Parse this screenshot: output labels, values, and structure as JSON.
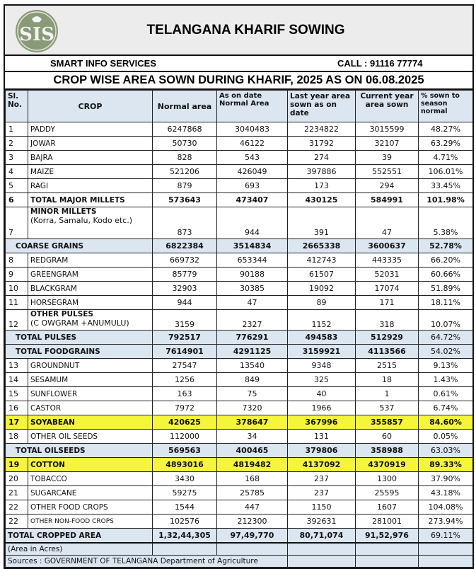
{
  "header": {
    "title": "TELANGANA KHARIF SOWING",
    "org": "SMART INFO SERVICES",
    "call": "CALL : 91116 77774",
    "subtitle": "CROP WISE AREA SOWN DURING KHARIF, 2025 AS ON  06.08.2025",
    "logo_text": "SIS"
  },
  "columns": [
    "Sl. No.",
    "CROP",
    "Normal area",
    "As on date Normal Area",
    "Last year area sown as on date",
    "Current year area sown",
    "% sown to season normal"
  ],
  "colors": {
    "header_bg": "#dce6f1",
    "highlight": "#f5f53a",
    "title_bg": "#ececec",
    "logo": "#8a9a78"
  },
  "rows": [
    {
      "sl": "1",
      "crop": "PADDY",
      "normal": "6247868",
      "asOn": "3040483",
      "lastYear": "2234822",
      "current": "3015599",
      "pct": "48.27%",
      "type": "normal"
    },
    {
      "sl": "2",
      "crop": "JOWAR",
      "normal": "50730",
      "asOn": "46122",
      "lastYear": "31792",
      "current": "32107",
      "pct": "63.29%",
      "type": "normal"
    },
    {
      "sl": "3",
      "crop": "BAJRA",
      "normal": "828",
      "asOn": "543",
      "lastYear": "274",
      "current": "39",
      "pct": "4.71%",
      "type": "normal"
    },
    {
      "sl": "4",
      "crop": "MAIZE",
      "normal": "521206",
      "asOn": "426049",
      "lastYear": "397886",
      "current": "552551",
      "pct": "106.01%",
      "type": "normal"
    },
    {
      "sl": "5",
      "crop": "RAGI",
      "normal": "879",
      "asOn": "693",
      "lastYear": "173",
      "current": "294",
      "pct": "33.45%",
      "type": "normal"
    },
    {
      "sl": "6",
      "crop": "TOTAL MAJOR MILLETS",
      "normal": "573643",
      "asOn": "473407",
      "lastYear": "430125",
      "current": "584991",
      "pct": "101.98%",
      "type": "bold"
    },
    {
      "sl": "7",
      "crop": "MINOR MILLETS",
      "sub": "(Korra, Samalu, Kodo etc.)",
      "normal": "873",
      "asOn": "944",
      "lastYear": "391",
      "current": "47",
      "pct": "5.38%",
      "type": "tall"
    },
    {
      "sl": "",
      "crop": "COARSE GRAINS",
      "normal": "6822384",
      "asOn": "3514834",
      "lastYear": "2665338",
      "current": "3600637",
      "pct": "52.78%",
      "type": "summary",
      "pctBold": true
    },
    {
      "sl": "8",
      "crop": "REDGRAM",
      "normal": "669732",
      "asOn": "653344",
      "lastYear": "412743",
      "current": "443335",
      "pct": "66.20%",
      "type": "normal"
    },
    {
      "sl": "9",
      "crop": "GREENGRAM",
      "normal": "85779",
      "asOn": "90188",
      "lastYear": "61507",
      "current": "52031",
      "pct": "60.66%",
      "type": "normal"
    },
    {
      "sl": "10",
      "crop": "BLACKGRAM",
      "normal": "32903",
      "asOn": "30385",
      "lastYear": "19092",
      "current": "17074",
      "pct": "51.89%",
      "type": "normal"
    },
    {
      "sl": "11",
      "crop": "HORSEGRAM",
      "normal": "944",
      "asOn": "47",
      "lastYear": "89",
      "current": "171",
      "pct": "18.11%",
      "type": "normal"
    },
    {
      "sl": "12",
      "crop": "OTHER PULSES",
      "sub": "(C OWGRAM +ANUMULU)",
      "normal": "3159",
      "asOn": "2327",
      "lastYear": "1152",
      "current": "318",
      "pct": "10.07%",
      "type": "mid"
    },
    {
      "sl": "",
      "crop": "TOTAL PULSES",
      "normal": "792517",
      "asOn": "776291",
      "lastYear": "494583",
      "current": "512929",
      "pct": "64.72%",
      "type": "summary",
      "pctBold": false
    },
    {
      "sl": "",
      "crop": "TOTAL  FOODGRAINS",
      "normal": "7614901",
      "asOn": "4291125",
      "lastYear": "3159921",
      "current": "4113566",
      "pct": "54.02%",
      "type": "summary",
      "pctBold": false
    },
    {
      "sl": "13",
      "crop": "GROUNDNUT",
      "normal": "27547",
      "asOn": "13540",
      "lastYear": "9348",
      "current": "2515",
      "pct": "9.13%",
      "type": "normal"
    },
    {
      "sl": "14",
      "crop": "SESAMUM",
      "normal": "1256",
      "asOn": "849",
      "lastYear": "325",
      "current": "18",
      "pct": "1.43%",
      "type": "normal"
    },
    {
      "sl": "15",
      "crop": "SUNFLOWER",
      "normal": "163",
      "asOn": "75",
      "lastYear": "40",
      "current": "1",
      "pct": "0.61%",
      "type": "normal"
    },
    {
      "sl": "16",
      "crop": "CASTOR",
      "normal": "7972",
      "asOn": "7320",
      "lastYear": "1966",
      "current": "537",
      "pct": "6.74%",
      "type": "normal"
    },
    {
      "sl": "17",
      "crop": "SOYABEAN",
      "normal": "420625",
      "asOn": "378647",
      "lastYear": "367996",
      "current": "355857",
      "pct": "84.60%",
      "type": "hl"
    },
    {
      "sl": "18",
      "crop": "OTHER OIL SEEDS",
      "normal": "112000",
      "asOn": "34",
      "lastYear": "131",
      "current": "60",
      "pct": "0.05%",
      "type": "normal"
    },
    {
      "sl": "",
      "crop": "TOTAL OILSEEDS",
      "normal": "569563",
      "asOn": "400465",
      "lastYear": "379806",
      "current": "358988",
      "pct": "63.03%",
      "type": "summary",
      "pctBold": false
    },
    {
      "sl": "19",
      "crop": "COTTON",
      "normal": "4893016",
      "asOn": "4819482",
      "lastYear": "4137092",
      "current": "4370919",
      "pct": "89.33%",
      "type": "hl"
    },
    {
      "sl": "20",
      "crop": "TOBACCO",
      "normal": "3430",
      "asOn": "168",
      "lastYear": "237",
      "current": "1300",
      "pct": "37.90%",
      "type": "normal"
    },
    {
      "sl": "21",
      "crop": "SUGARCANE",
      "normal": "59275",
      "asOn": "25785",
      "lastYear": "237",
      "current": "25595",
      "pct": "43.18%",
      "type": "normal"
    },
    {
      "sl": "22",
      "crop": "OTHER  FOOD CROPS",
      "normal": "1544",
      "asOn": "447",
      "lastYear": "1150",
      "current": "1607",
      "pct": "104.08%",
      "type": "normal"
    },
    {
      "sl": "22",
      "crop": "OTHER NON-FOOD CROPS",
      "normal": "102576",
      "asOn": "212300",
      "lastYear": "392631",
      "current": "281001",
      "pct": "273.94%",
      "type": "normal",
      "small": true
    }
  ],
  "total": {
    "crop": "TOTAL CROPPED AREA",
    "normal": "1,32,44,305",
    "asOn": "97,49,770",
    "lastYear": "80,71,074",
    "current": "91,52,976",
    "pct": "69.11%"
  },
  "footer": {
    "unit": "(Area in Acres)",
    "source": "Sources : GOVERNMENT OF TELANGANA Department of Agriculture"
  }
}
